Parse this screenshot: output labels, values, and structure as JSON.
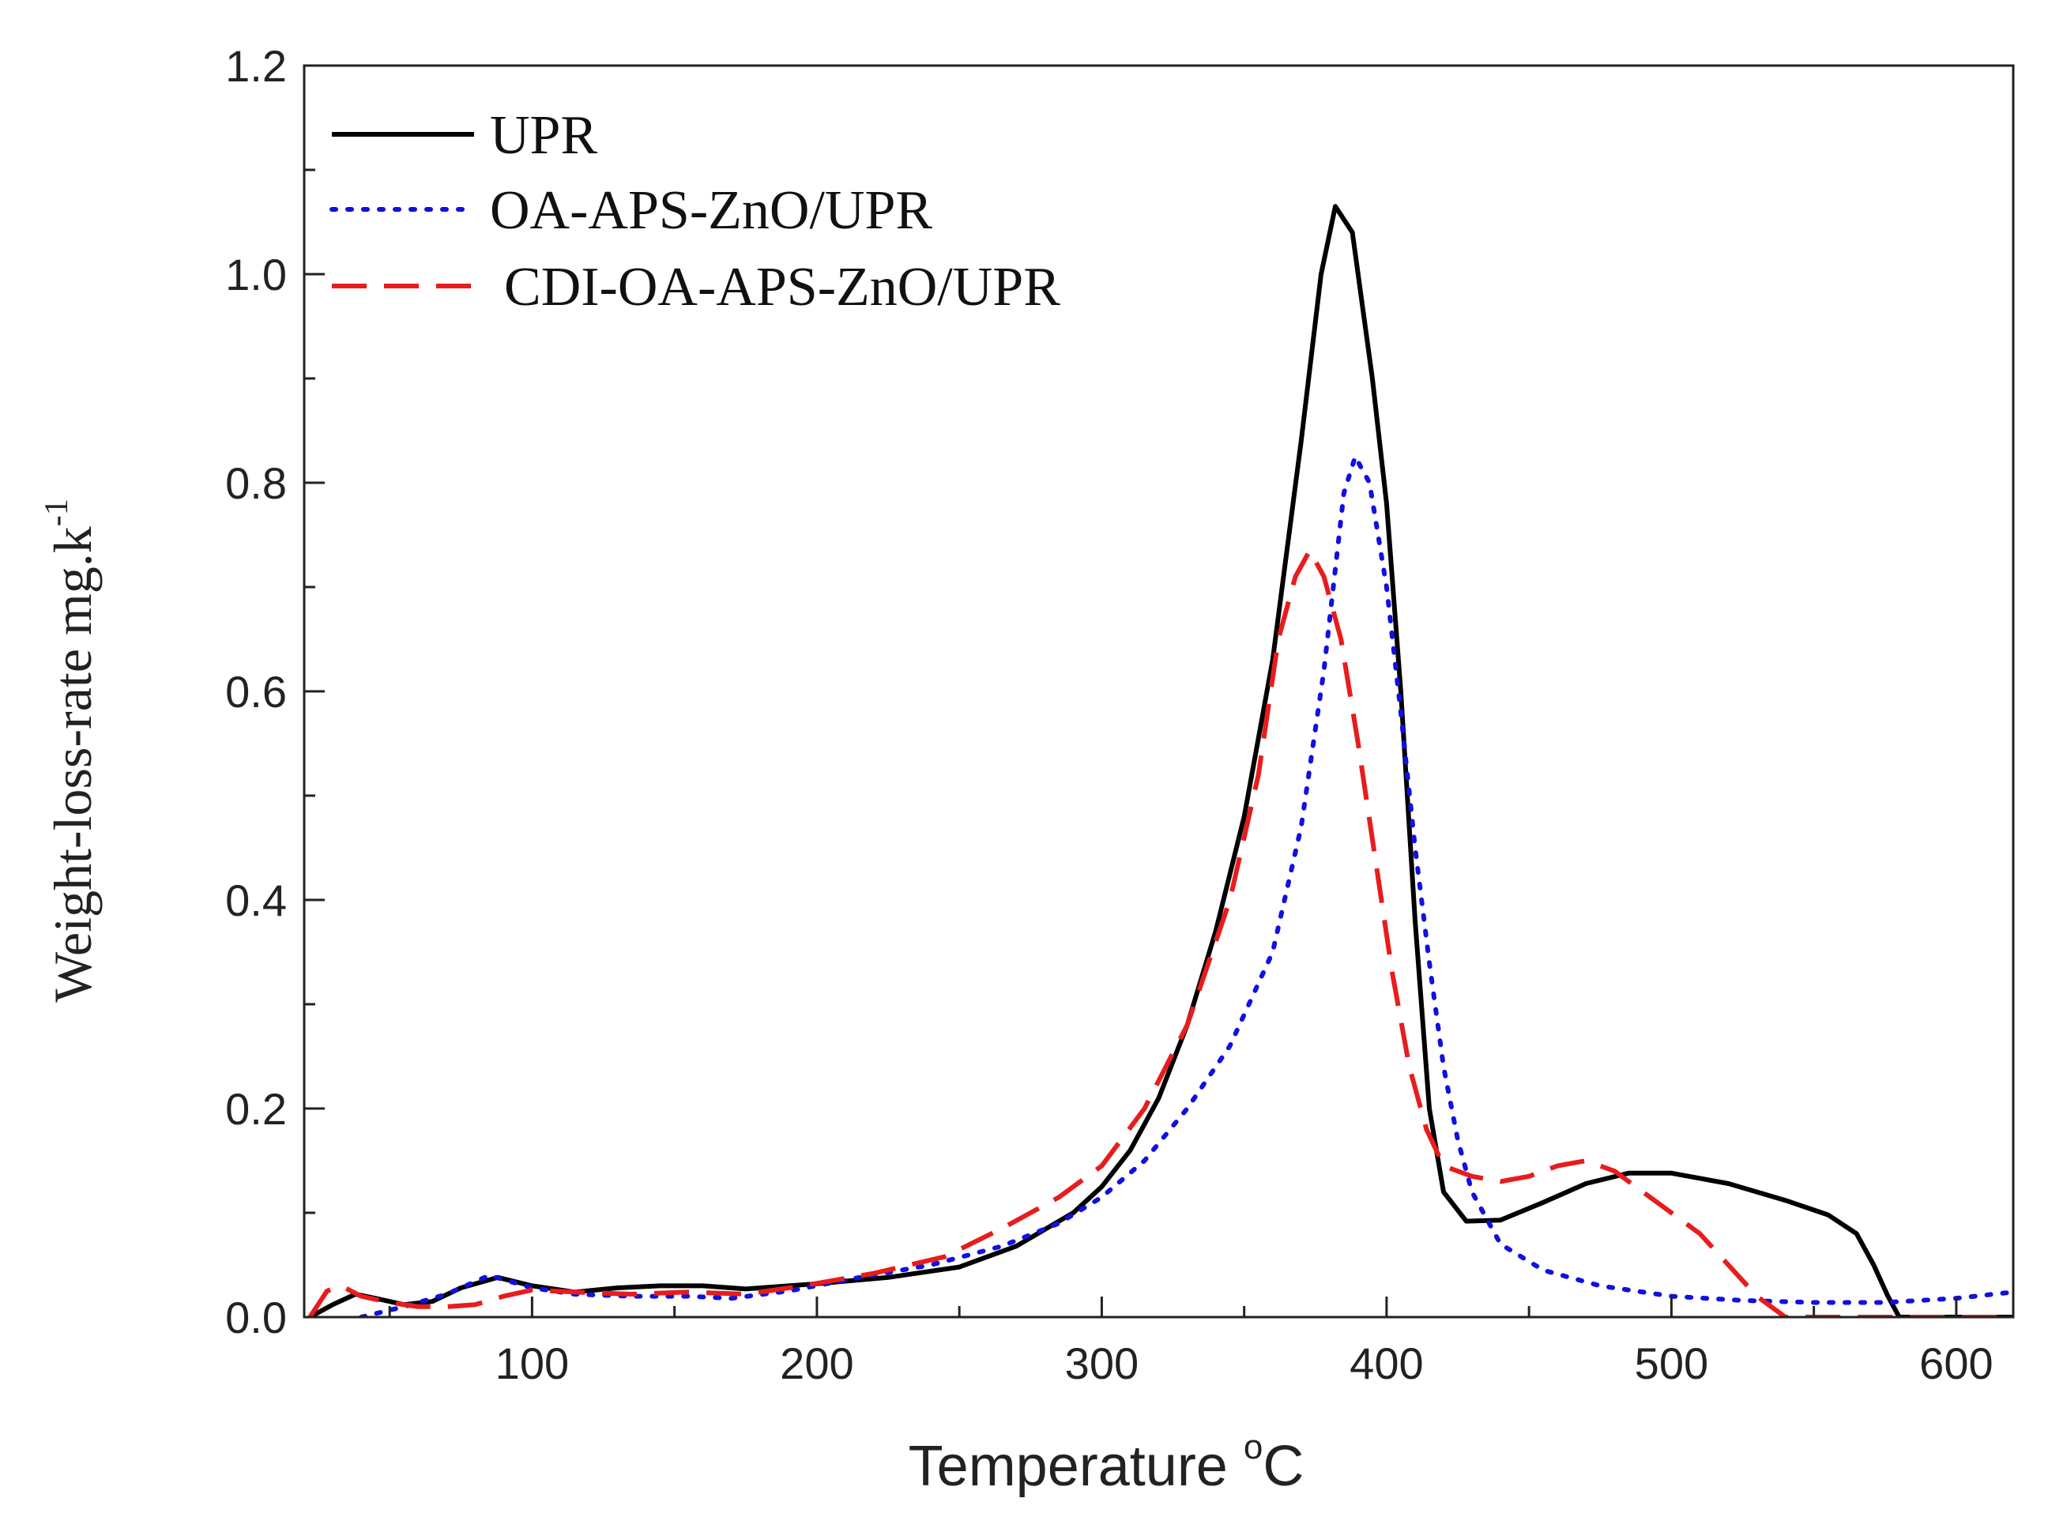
{
  "chart_data": {
    "type": "line",
    "title": "",
    "xlabel": "Temperature",
    "xlabel_unit_superscript": "o",
    "xlabel_unit": "C",
    "ylabel": "Weight-loss-rate",
    "ylabel_unit": "mg.k",
    "ylabel_unit_superscript": "-1",
    "xlim": [
      20,
      620
    ],
    "ylim": [
      0.0,
      1.2
    ],
    "xticks": [
      100,
      200,
      300,
      400,
      500,
      600
    ],
    "yticks": [
      "0.0",
      "0.2",
      "0.4",
      "0.6",
      "0.8",
      "1.0",
      "1.2"
    ],
    "grid": false,
    "legend_position": "top-left",
    "series": [
      {
        "name": "UPR",
        "color": "#000000",
        "style": "solid",
        "points": [
          [
            22,
            0.0
          ],
          [
            30,
            0.012
          ],
          [
            38,
            0.022
          ],
          [
            45,
            0.018
          ],
          [
            55,
            0.012
          ],
          [
            65,
            0.015
          ],
          [
            75,
            0.028
          ],
          [
            88,
            0.038
          ],
          [
            100,
            0.03
          ],
          [
            115,
            0.024
          ],
          [
            130,
            0.028
          ],
          [
            145,
            0.03
          ],
          [
            160,
            0.03
          ],
          [
            175,
            0.027
          ],
          [
            200,
            0.032
          ],
          [
            225,
            0.038
          ],
          [
            250,
            0.048
          ],
          [
            270,
            0.068
          ],
          [
            290,
            0.1
          ],
          [
            300,
            0.125
          ],
          [
            310,
            0.16
          ],
          [
            320,
            0.21
          ],
          [
            330,
            0.28
          ],
          [
            340,
            0.37
          ],
          [
            350,
            0.48
          ],
          [
            360,
            0.63
          ],
          [
            370,
            0.84
          ],
          [
            377,
            1.0
          ],
          [
            382,
            1.065
          ],
          [
            388,
            1.04
          ],
          [
            395,
            0.9
          ],
          [
            400,
            0.78
          ],
          [
            405,
            0.6
          ],
          [
            410,
            0.38
          ],
          [
            415,
            0.2
          ],
          [
            420,
            0.12
          ],
          [
            428,
            0.092
          ],
          [
            440,
            0.093
          ],
          [
            455,
            0.11
          ],
          [
            470,
            0.128
          ],
          [
            485,
            0.138
          ],
          [
            500,
            0.138
          ],
          [
            520,
            0.128
          ],
          [
            540,
            0.112
          ],
          [
            555,
            0.098
          ],
          [
            565,
            0.08
          ],
          [
            571,
            0.05
          ],
          [
            576,
            0.02
          ],
          [
            580,
            0.0
          ],
          [
            620,
            0.0
          ]
        ]
      },
      {
        "name": "OA-APS-ZnO/UPR",
        "color": "#1010e0",
        "style": "dotted",
        "points": [
          [
            40,
            0.0
          ],
          [
            55,
            0.01
          ],
          [
            70,
            0.022
          ],
          [
            85,
            0.04
          ],
          [
            100,
            0.028
          ],
          [
            115,
            0.022
          ],
          [
            135,
            0.02
          ],
          [
            155,
            0.02
          ],
          [
            170,
            0.018
          ],
          [
            190,
            0.025
          ],
          [
            215,
            0.038
          ],
          [
            240,
            0.05
          ],
          [
            265,
            0.068
          ],
          [
            285,
            0.09
          ],
          [
            300,
            0.115
          ],
          [
            315,
            0.15
          ],
          [
            330,
            0.2
          ],
          [
            345,
            0.26
          ],
          [
            360,
            0.35
          ],
          [
            370,
            0.47
          ],
          [
            378,
            0.62
          ],
          [
            385,
            0.79
          ],
          [
            389,
            0.825
          ],
          [
            394,
            0.8
          ],
          [
            400,
            0.7
          ],
          [
            405,
            0.58
          ],
          [
            410,
            0.45
          ],
          [
            415,
            0.34
          ],
          [
            420,
            0.24
          ],
          [
            425,
            0.17
          ],
          [
            430,
            0.12
          ],
          [
            440,
            0.07
          ],
          [
            455,
            0.045
          ],
          [
            475,
            0.03
          ],
          [
            500,
            0.02
          ],
          [
            525,
            0.016
          ],
          [
            550,
            0.014
          ],
          [
            575,
            0.014
          ],
          [
            600,
            0.018
          ],
          [
            620,
            0.024
          ]
        ]
      },
      {
        "name": "CDI-OA-APS-ZnO/UPR",
        "color": "#e81c1c",
        "style": "dashed",
        "points": [
          [
            22,
            0.0
          ],
          [
            28,
            0.025
          ],
          [
            33,
            0.03
          ],
          [
            40,
            0.02
          ],
          [
            50,
            0.014
          ],
          [
            60,
            0.01
          ],
          [
            70,
            0.01
          ],
          [
            80,
            0.012
          ],
          [
            90,
            0.02
          ],
          [
            100,
            0.026
          ],
          [
            115,
            0.024
          ],
          [
            135,
            0.022
          ],
          [
            155,
            0.024
          ],
          [
            175,
            0.022
          ],
          [
            195,
            0.03
          ],
          [
            220,
            0.042
          ],
          [
            245,
            0.058
          ],
          [
            265,
            0.085
          ],
          [
            285,
            0.115
          ],
          [
            300,
            0.145
          ],
          [
            315,
            0.2
          ],
          [
            330,
            0.28
          ],
          [
            345,
            0.4
          ],
          [
            355,
            0.52
          ],
          [
            362,
            0.65
          ],
          [
            368,
            0.71
          ],
          [
            373,
            0.735
          ],
          [
            378,
            0.71
          ],
          [
            384,
            0.65
          ],
          [
            390,
            0.55
          ],
          [
            396,
            0.44
          ],
          [
            402,
            0.33
          ],
          [
            408,
            0.24
          ],
          [
            414,
            0.18
          ],
          [
            420,
            0.145
          ],
          [
            430,
            0.135
          ],
          [
            440,
            0.13
          ],
          [
            450,
            0.135
          ],
          [
            460,
            0.145
          ],
          [
            470,
            0.15
          ],
          [
            480,
            0.14
          ],
          [
            490,
            0.12
          ],
          [
            500,
            0.1
          ],
          [
            510,
            0.08
          ],
          [
            520,
            0.05
          ],
          [
            530,
            0.02
          ],
          [
            540,
            0.0
          ],
          [
            620,
            0.0
          ]
        ]
      }
    ]
  }
}
